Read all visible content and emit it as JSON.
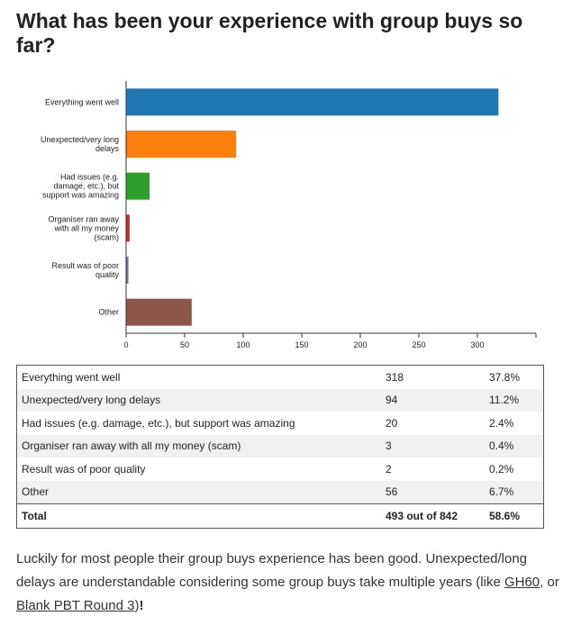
{
  "title": "What has been your experience with group buys so far?",
  "chart_data": {
    "type": "bar",
    "orientation": "horizontal",
    "categories": [
      [
        "Everything went well"
      ],
      [
        "Unexpected/very long",
        "delays"
      ],
      [
        "Had issues (e.g.",
        "damage, etc.), but",
        "support was amazing"
      ],
      [
        "Organiser ran away",
        "with all my money",
        "(scam)"
      ],
      [
        "Result was of poor",
        "quality"
      ],
      [
        "Other"
      ]
    ],
    "values": [
      318,
      94,
      20,
      3,
      2,
      56
    ],
    "colors": [
      "#1f77b4",
      "#ff7f0e",
      "#2ca02c",
      "#d62728",
      "#7570b3",
      "#8c564b"
    ],
    "xlim": [
      0,
      350
    ],
    "xticks": [
      "0",
      "50",
      "100",
      "150",
      "200",
      "250",
      "300"
    ],
    "grid": false,
    "legend": "none"
  },
  "table": {
    "rows": [
      {
        "label": "Everything went well",
        "count": "318",
        "pct": "37.8%"
      },
      {
        "label": "Unexpected/very long delays",
        "count": "94",
        "pct": "11.2%"
      },
      {
        "label": "Had issues (e.g. damage, etc.), but support was amazing",
        "count": "20",
        "pct": "2.4%"
      },
      {
        "label": "Organiser ran away with all my money (scam)",
        "count": "3",
        "pct": "0.4%"
      },
      {
        "label": "Result was of poor quality",
        "count": "2",
        "pct": "0.2%"
      },
      {
        "label": "Other",
        "count": "56",
        "pct": "6.7%"
      }
    ],
    "total": {
      "label": "Total",
      "count": "493 out of 842",
      "pct": "58.6%"
    }
  },
  "summary": {
    "text_1": "Luckily for most people their group buys experience has been good. Unexpected/long delays are understandable considering some group buys take multiple years (like ",
    "link_1": "GH60",
    "text_2": ", or ",
    "link_2": "Blank PBT Round 3",
    "text_3": ")",
    "excl": "!"
  }
}
